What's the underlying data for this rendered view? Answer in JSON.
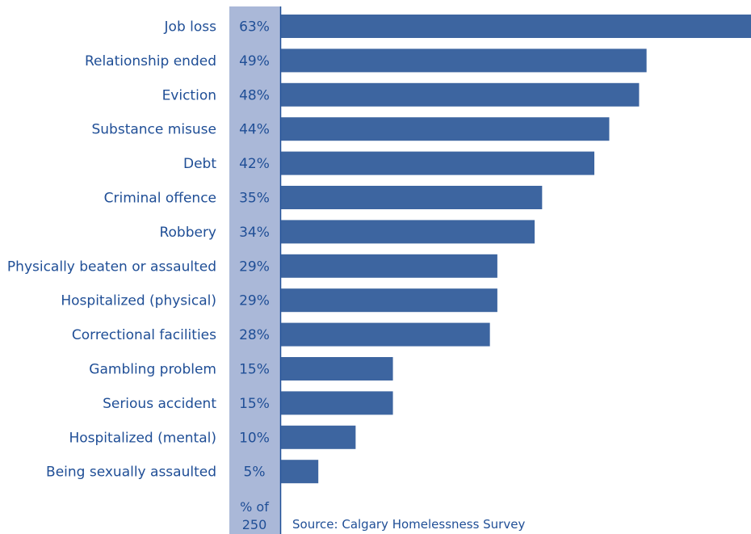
{
  "chart_data": {
    "type": "bar",
    "orientation": "horizontal",
    "categories": [
      "Job loss",
      "Relationship ended",
      "Eviction",
      "Substance misuse",
      "Debt",
      "Criminal offence",
      "Robbery",
      "Physically beaten or assaulted",
      "Hospitalized (physical)",
      "Correctional facilities",
      "Gambling problem",
      "Serious accident",
      "Hospitalized (mental)",
      "Being sexually assaulted"
    ],
    "values": [
      63,
      49,
      48,
      44,
      42,
      35,
      34,
      29,
      29,
      28,
      15,
      15,
      10,
      5
    ],
    "value_labels": [
      "63%",
      "49%",
      "48%",
      "44%",
      "42%",
      "35%",
      "34%",
      "29%",
      "29%",
      "28%",
      "15%",
      "15%",
      "10%",
      "5%"
    ],
    "unit_label_line1": "% of",
    "unit_label_line2": "250",
    "source": "Source: Calgary Homelessness Survey",
    "xlim": [
      0,
      63
    ],
    "grid": false,
    "colors": {
      "bar": "#3d65a0",
      "column_band": "#aab8d8",
      "axis": "#1f4e96",
      "text": "#1f4e96"
    }
  }
}
